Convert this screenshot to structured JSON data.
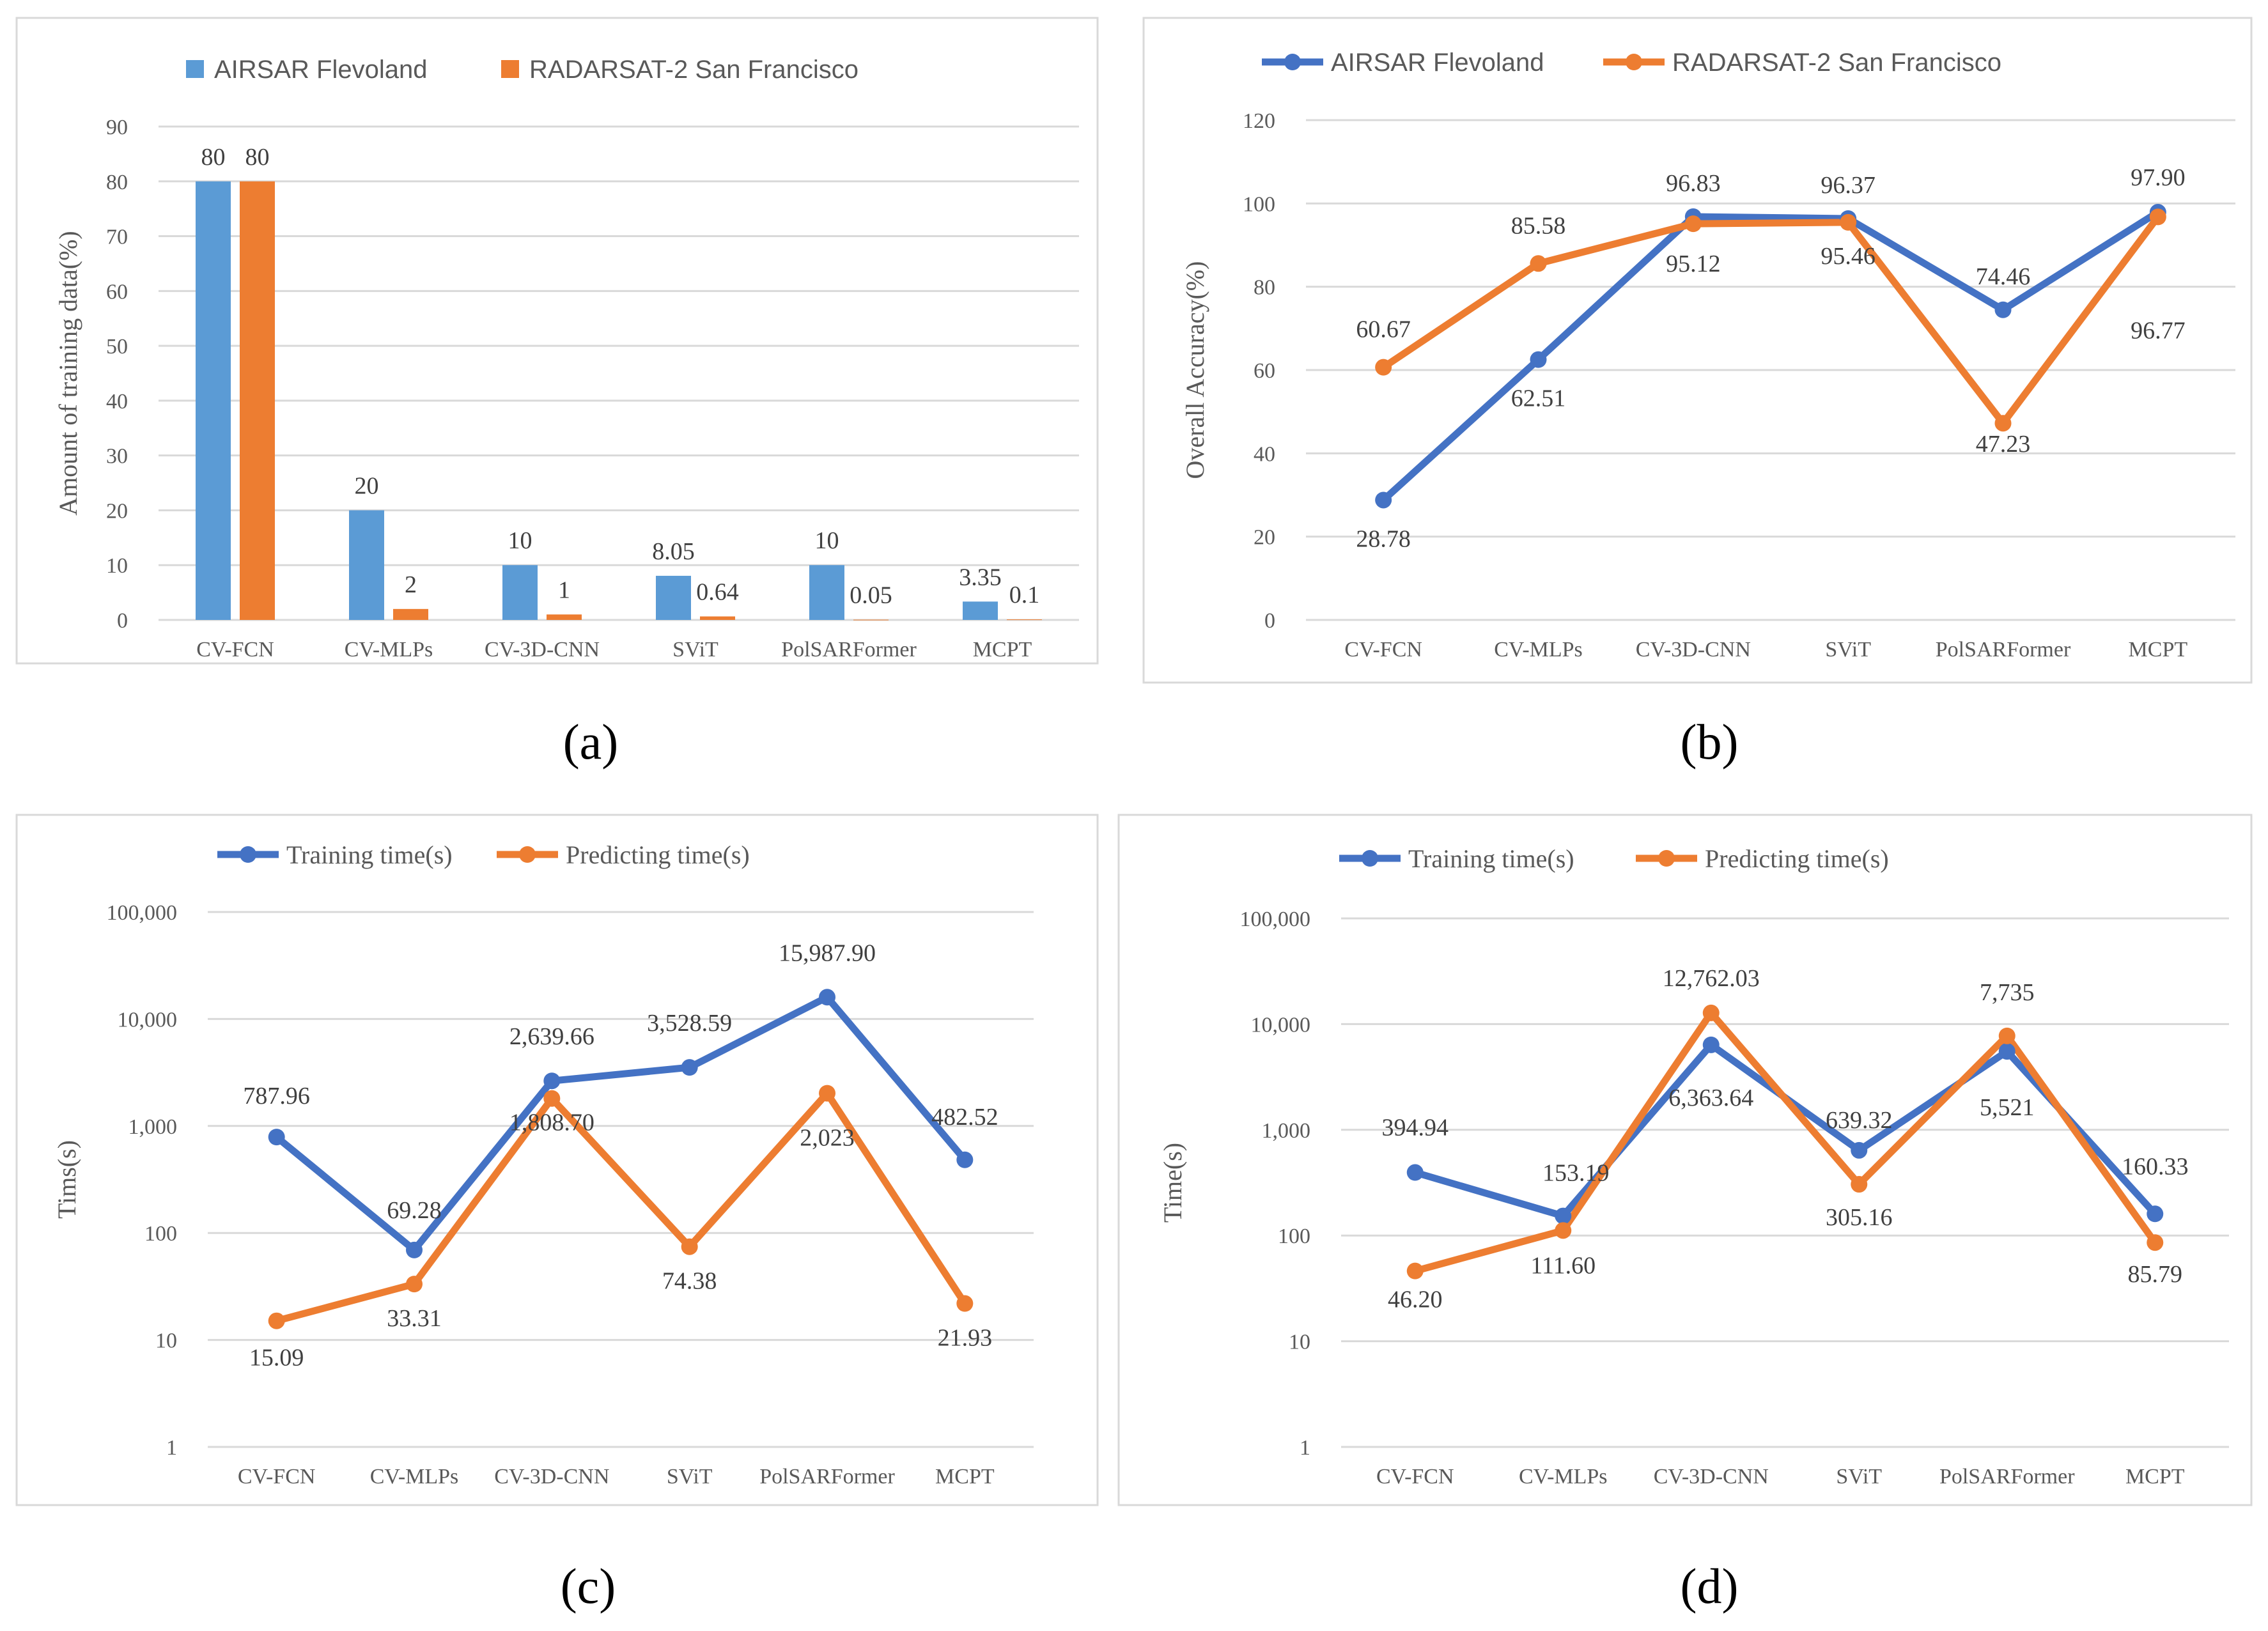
{
  "colors": {
    "blue": "#5B9BD5",
    "orange": "#ED7D31",
    "line_blue": "#4472C4",
    "line_orange": "#ED7D31"
  },
  "chart_data": [
    {
      "type": "bar",
      "caption": "(a)",
      "categories": [
        "CV-FCN",
        "CV-MLPs",
        "CV-3D-CNN",
        "SViT",
        "PolSARFormer",
        "MCPT"
      ],
      "series": [
        {
          "name": "AIRSAR Flevoland",
          "values": [
            80,
            20,
            10,
            8.05,
            10,
            3.35
          ],
          "labels": [
            "80",
            "20",
            "10",
            "8.05",
            "10",
            "3.35"
          ]
        },
        {
          "name": "RADARSAT-2 San Francisco",
          "values": [
            80,
            2,
            1,
            0.64,
            0.05,
            0.1
          ],
          "labels": [
            "80",
            "2",
            "1",
            "0.64",
            "0.05",
            "0.1"
          ]
        }
      ],
      "ylabel": "Amount of training data(%)",
      "ylim": [
        0,
        90
      ],
      "yticks": [
        "0",
        "10",
        "20",
        "30",
        "40",
        "50",
        "60",
        "70",
        "80",
        "90"
      ],
      "legend_position": "top-center",
      "grid": true
    },
    {
      "type": "line",
      "caption": "(b)",
      "categories": [
        "CV-FCN",
        "CV-MLPs",
        "CV-3D-CNN",
        "SViT",
        "PolSARFormer",
        "MCPT"
      ],
      "series": [
        {
          "name": "AIRSAR Flevoland",
          "values": [
            28.78,
            62.51,
            96.83,
            96.37,
            74.46,
            97.9
          ],
          "labels": [
            "28.78",
            "62.51",
            "96.83",
            "96.37",
            "74.46",
            "97.90"
          ]
        },
        {
          "name": "RADARSAT-2 San Francisco",
          "values": [
            60.67,
            85.58,
            95.12,
            95.46,
            47.23,
            96.77
          ],
          "labels": [
            "60.67",
            "85.58",
            "95.12",
            "95.46",
            "47.23",
            "96.77"
          ]
        }
      ],
      "ylabel": "Overall Accuracy(%)",
      "ylim": [
        0,
        120
      ],
      "yticks": [
        "0",
        "20",
        "40",
        "60",
        "80",
        "100",
        "120"
      ],
      "legend_position": "top-center",
      "grid": true
    },
    {
      "type": "line",
      "caption": "(c)",
      "yscale": "log",
      "categories": [
        "CV-FCN",
        "CV-MLPs",
        "CV-3D-CNN",
        "SViT",
        "PolSARFormer",
        "MCPT"
      ],
      "series": [
        {
          "name": "Training time(s)",
          "values": [
            787.96,
            69.28,
            2639.66,
            3528.59,
            15987.9,
            482.52
          ],
          "labels": [
            "787.96",
            "69.28",
            "2,639.66",
            "3,528.59",
            "15,987.90",
            "482.52"
          ]
        },
        {
          "name": "Predicting time(s)",
          "values": [
            15.09,
            33.31,
            1808.7,
            74.38,
            2023,
            21.93
          ],
          "labels": [
            "15.09",
            "33.31",
            "1,808.70",
            "74.38",
            "2,023",
            "21.93"
          ]
        }
      ],
      "ylabel": "Tims(s)",
      "ylim": [
        1,
        100000
      ],
      "yticks": [
        "1",
        "10",
        "100",
        "1,000",
        "10,000",
        "100,000"
      ],
      "legend_position": "top-center",
      "grid": true
    },
    {
      "type": "line",
      "caption": "(d)",
      "yscale": "log",
      "categories": [
        "CV-FCN",
        "CV-MLPs",
        "CV-3D-CNN",
        "SViT",
        "PolSARFormer",
        "MCPT"
      ],
      "series": [
        {
          "name": "Training time(s)",
          "values": [
            394.94,
            153.19,
            6363.64,
            639.32,
            5521,
            160.33
          ],
          "labels": [
            "394.94",
            "153.19",
            "6,363.64",
            "639.32",
            "5,521",
            "160.33"
          ]
        },
        {
          "name": "Predicting time(s)",
          "values": [
            46.2,
            111.6,
            12762.03,
            305.16,
            7735,
            85.79
          ],
          "labels": [
            "46.20",
            "111.60",
            "12,762.03",
            "305.16",
            "7,735",
            "85.79"
          ]
        }
      ],
      "ylabel": "Time(s)",
      "ylim": [
        1,
        100000
      ],
      "yticks": [
        "1",
        "10",
        "100",
        "1,000",
        "10,000",
        "100,000"
      ],
      "legend_position": "top-center",
      "grid": true
    }
  ]
}
